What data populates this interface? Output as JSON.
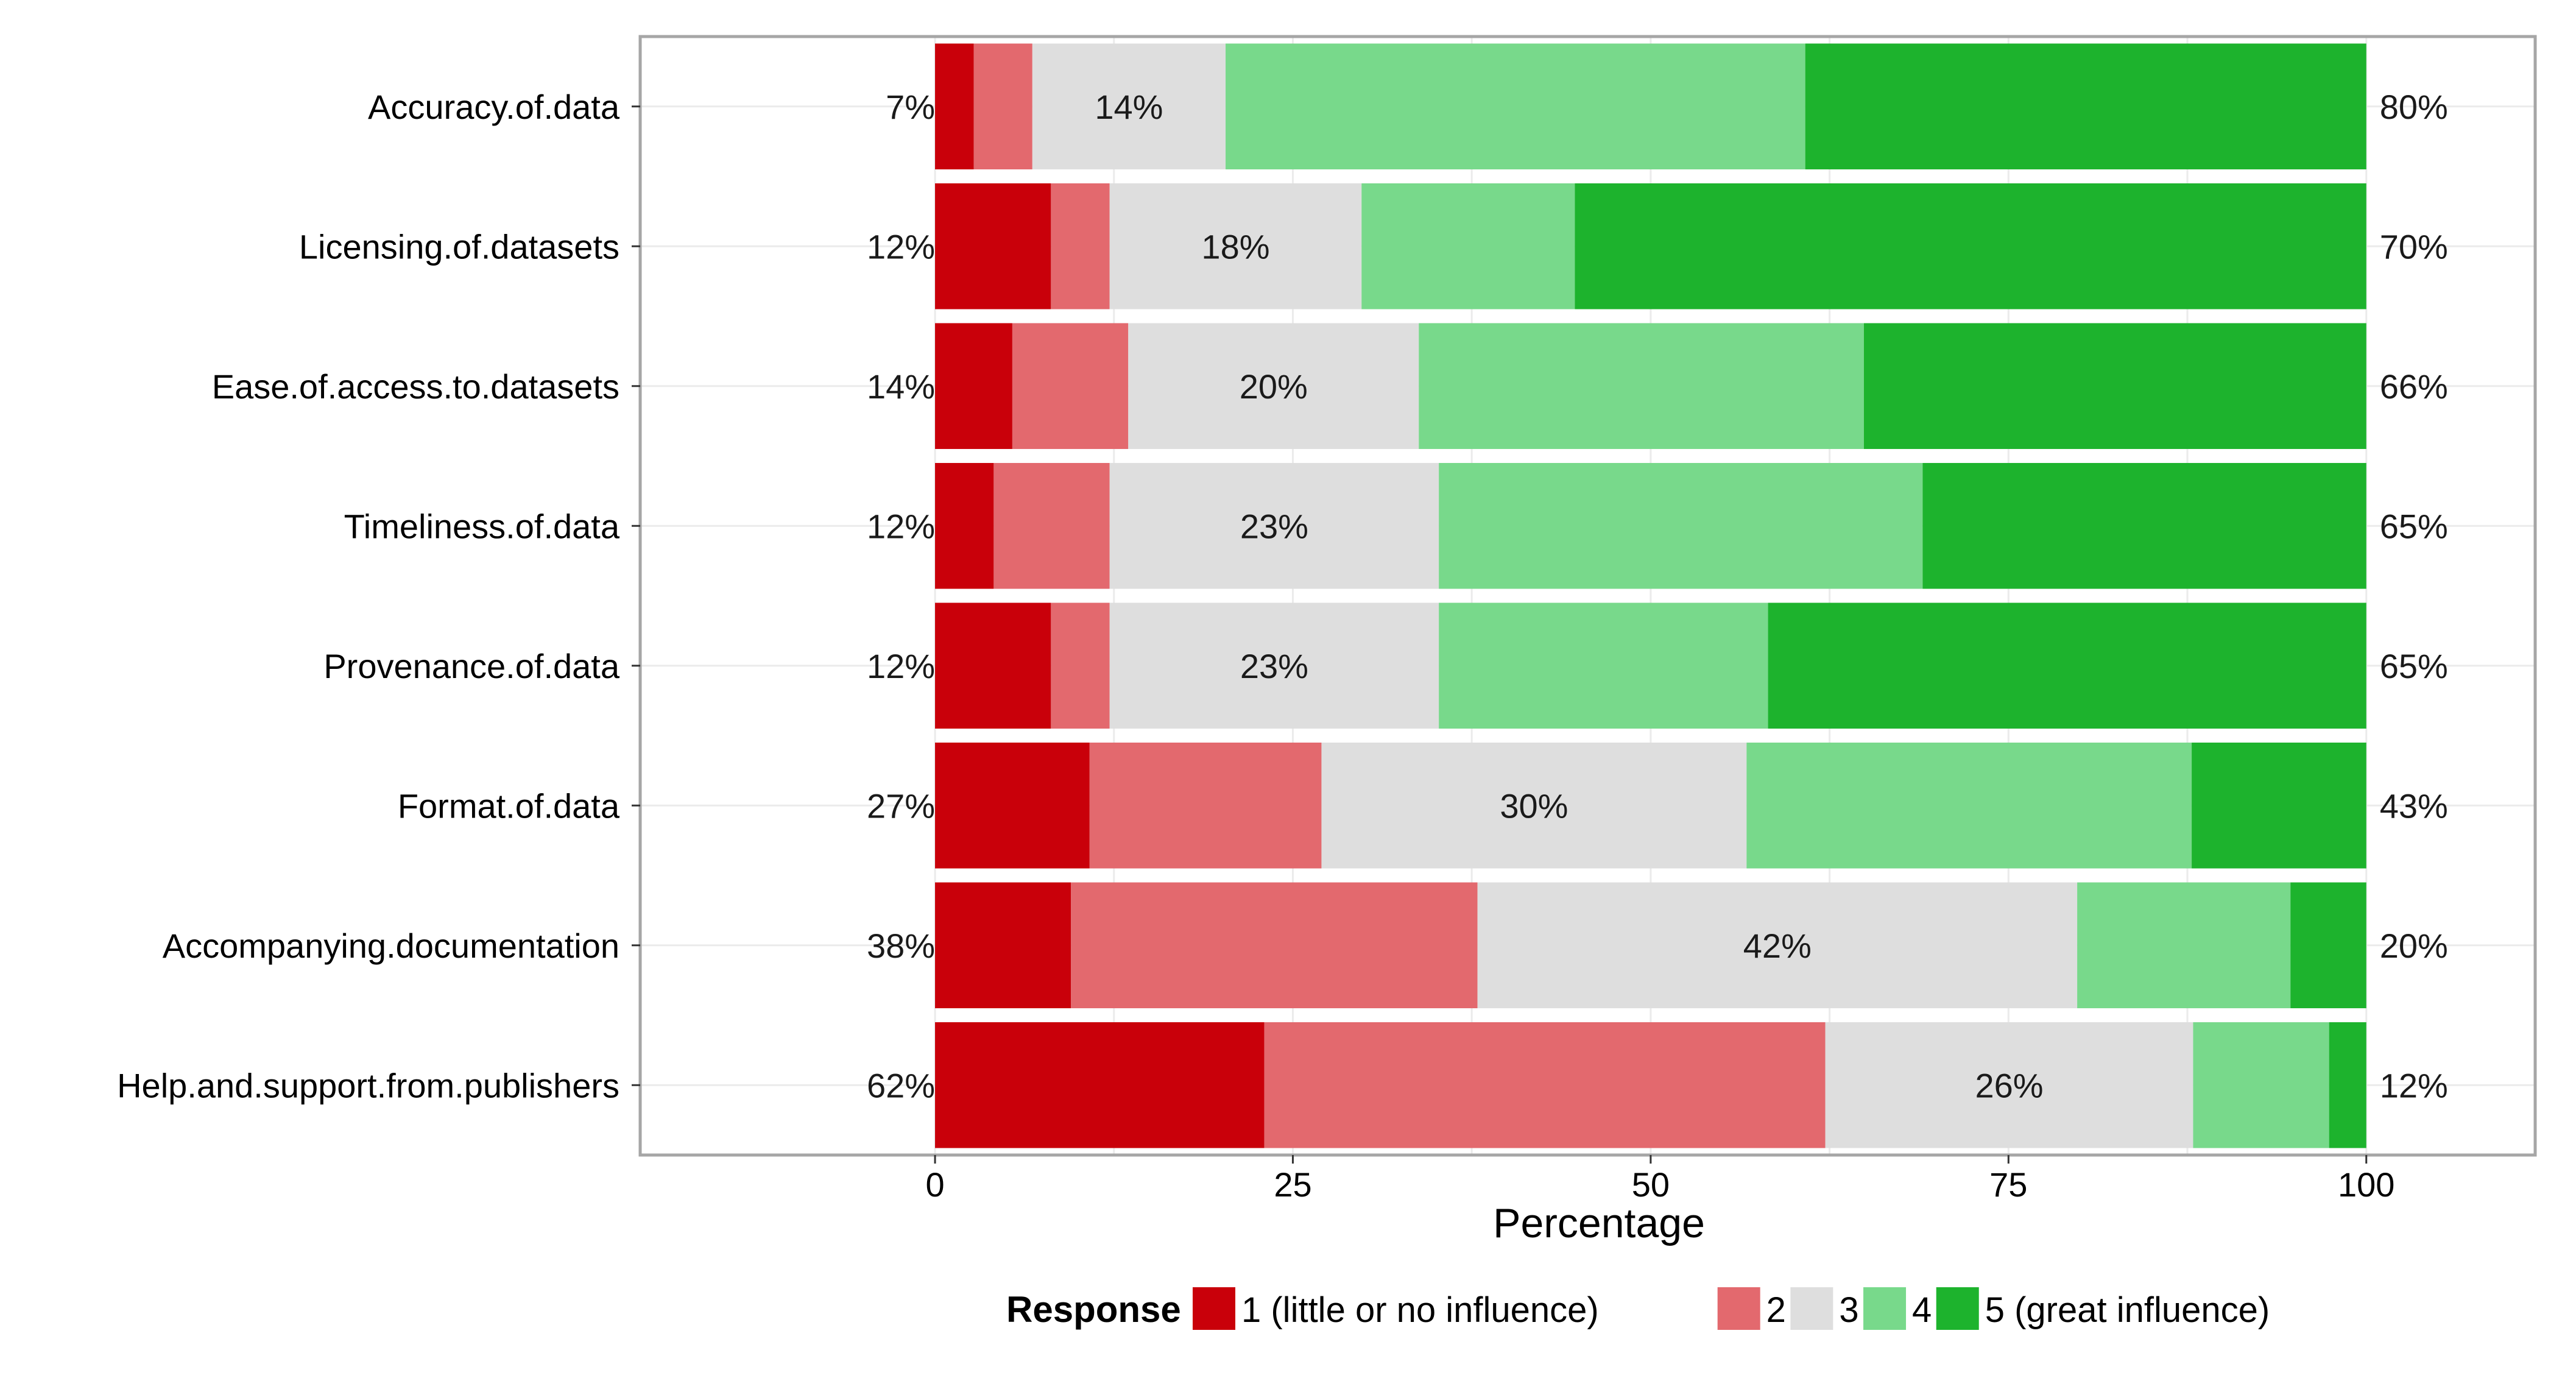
{
  "chart_data": {
    "type": "bar",
    "orientation": "horizontal",
    "stacked": true,
    "title": "",
    "xlabel": "Percentage",
    "ylabel": "",
    "xlim": [
      -20.6,
      111.8
    ],
    "xticks": [
      0,
      25,
      50,
      75,
      100
    ],
    "grid": true,
    "categories": [
      "Accuracy.of.data",
      "Licensing.of.datasets",
      "Ease.of.access.to.datasets",
      "Timeliness.of.data",
      "Provenance.of.data",
      "Format.of.data",
      "Accompanying.documentation",
      "Help.and.support.from.publishers"
    ],
    "series": [
      {
        "name": "1 (little or no influence)",
        "color": "#c9000a",
        "values": [
          2.7,
          8.1,
          5.4,
          4.1,
          8.1,
          10.8,
          9.5,
          23.0
        ]
      },
      {
        "name": "2",
        "color": "#e3696e",
        "values": [
          4.1,
          4.1,
          8.1,
          8.1,
          4.1,
          16.2,
          28.4,
          39.2
        ]
      },
      {
        "name": "3",
        "color": "#dedede",
        "values": [
          13.5,
          17.6,
          20.3,
          23.0,
          23.0,
          29.7,
          41.9,
          25.7
        ]
      },
      {
        "name": "4",
        "color": "#78d98b",
        "values": [
          40.5,
          14.9,
          31.1,
          33.8,
          23.0,
          31.1,
          14.9,
          9.5
        ]
      },
      {
        "name": "5 (great influence)",
        "color": "#1db32d",
        "values": [
          39.2,
          55.3,
          35.1,
          31.0,
          41.8,
          12.2,
          5.3,
          2.6
        ]
      }
    ],
    "low_labels": [
      "7%",
      "12%",
      "14%",
      "12%",
      "12%",
      "27%",
      "38%",
      "62%"
    ],
    "mid_labels": [
      "14%",
      "18%",
      "20%",
      "23%",
      "23%",
      "30%",
      "42%",
      "26%"
    ],
    "high_labels": [
      "80%",
      "70%",
      "66%",
      "65%",
      "65%",
      "43%",
      "20%",
      "12%"
    ],
    "legend": {
      "title": "Response",
      "placement": "bottom"
    }
  }
}
